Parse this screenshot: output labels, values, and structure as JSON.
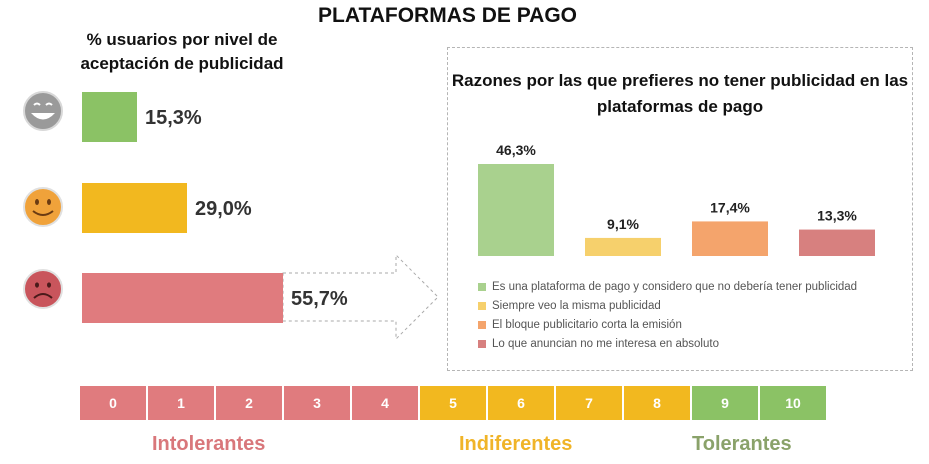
{
  "title": "PLATAFORMAS DE PAGO",
  "left_panel": {
    "subtitle": "% usuarios por nivel de aceptación de publicidad"
  },
  "right_panel": {
    "title": "Razones por las que prefieres no tener publicidad en las plataformas de pago"
  },
  "scale": {
    "cells": [
      "0",
      "1",
      "2",
      "3",
      "4",
      "5",
      "6",
      "7",
      "8",
      "9",
      "10"
    ],
    "groups": [
      {
        "label": "Intolerantes",
        "color": "#d9777b"
      },
      {
        "label": "Indiferentes",
        "color": "#f0b428"
      },
      {
        "label": "Tolerantes",
        "color": "#8aa26a"
      }
    ]
  },
  "colors": {
    "green": "#8bc265",
    "yellow": "#f2b81f",
    "red": "#e07b7e",
    "scale_red": "#e07b7e",
    "scale_yellow": "#f2b81f",
    "scale_green": "#8bc265",
    "reason_green": "#a9d18e",
    "reason_yellow": "#f6d06c",
    "reason_orange": "#f4a46c",
    "reason_red": "#d7807f"
  },
  "chart_data": [
    {
      "type": "bar",
      "orientation": "horizontal",
      "categories": [
        "Tolerantes",
        "Indiferentes",
        "Intolerantes"
      ],
      "icons": [
        "happy-face-icon",
        "neutral-face-icon",
        "sad-face-icon"
      ],
      "values": [
        15.3,
        29.0,
        55.7
      ],
      "labels": [
        "15,3%",
        "29,0%",
        "55,7%"
      ],
      "colors": [
        "#8bc265",
        "#f2b81f",
        "#e07b7e"
      ],
      "xlim": [
        0,
        55.7
      ]
    },
    {
      "type": "bar",
      "categories": [
        "Es una plataforma de pago y considero que no debería tener publicidad",
        "Siempre veo la misma publicidad",
        "El bloque publicitario corta la emisión",
        "Lo que anuncian no me interesa en absoluto"
      ],
      "values": [
        46.3,
        9.1,
        17.4,
        13.3
      ],
      "labels": [
        "46,3%",
        "9,1%",
        "17,4%",
        "13,3%"
      ],
      "colors": [
        "#a9d18e",
        "#f6d06c",
        "#f4a46c",
        "#d7807f"
      ],
      "ylim": [
        0,
        46.3
      ],
      "legend": "bottom"
    }
  ]
}
